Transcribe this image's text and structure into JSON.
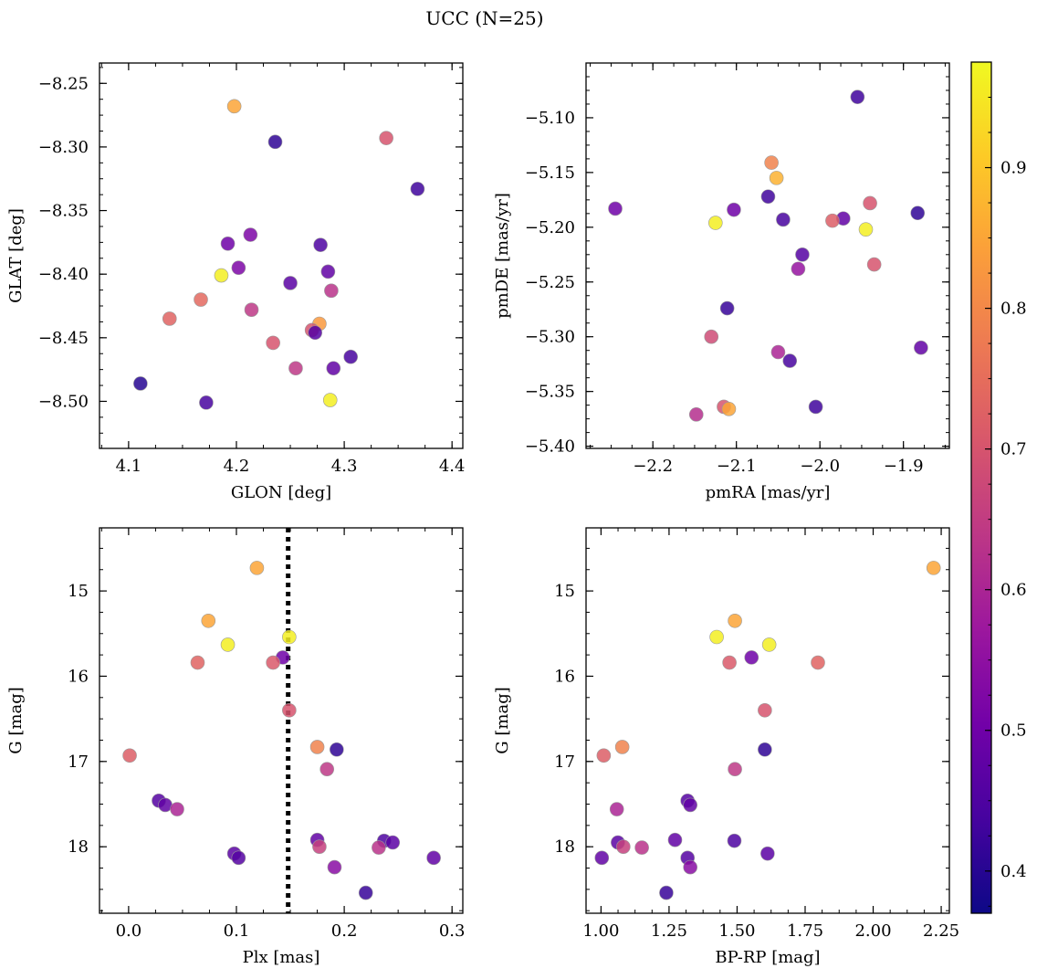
{
  "figure": {
    "title": "UCC (N=25)"
  },
  "colorbar": {
    "range": [
      0.37,
      0.975
    ],
    "ticks": [
      0.4,
      0.5,
      0.6,
      0.7,
      0.8,
      0.9
    ],
    "tick_labels": [
      "0.4",
      "0.5",
      "0.6",
      "0.7",
      "0.8",
      "0.9"
    ],
    "colormap": [
      "#0d0887",
      "#46039f",
      "#7201a8",
      "#9c179e",
      "#bd3786",
      "#d8576b",
      "#ed7953",
      "#fb9f3a",
      "#fdca26",
      "#f0f921"
    ]
  },
  "chart_data": [
    {
      "type": "scatter",
      "name": "glon-glat",
      "xlabel": "GLON [deg]",
      "ylabel": "GLAT [deg]",
      "xlim": [
        4.073,
        4.41
      ],
      "ylim": [
        -8.537,
        -8.234
      ],
      "xticks": [
        4.1,
        4.2,
        4.3,
        4.4
      ],
      "xtick_labels": [
        "4.1",
        "4.2",
        "4.3",
        "4.4"
      ],
      "yticks": [
        -8.25,
        -8.3,
        -8.35,
        -8.4,
        -8.45,
        -8.5
      ],
      "ytick_labels": [
        "−8.25",
        "−8.30",
        "−8.35",
        "−8.40",
        "−8.45",
        "−8.50"
      ],
      "points": [
        {
          "x": 4.198,
          "y": -8.268,
          "c": 0.85
        },
        {
          "x": 4.236,
          "y": -8.296,
          "c": 0.41
        },
        {
          "x": 4.339,
          "y": -8.293,
          "c": 0.7
        },
        {
          "x": 4.368,
          "y": -8.333,
          "c": 0.43
        },
        {
          "x": 4.213,
          "y": -8.369,
          "c": 0.52
        },
        {
          "x": 4.192,
          "y": -8.376,
          "c": 0.5
        },
        {
          "x": 4.278,
          "y": -8.377,
          "c": 0.45
        },
        {
          "x": 4.202,
          "y": -8.395,
          "c": 0.52
        },
        {
          "x": 4.186,
          "y": -8.401,
          "c": 0.96
        },
        {
          "x": 4.285,
          "y": -8.398,
          "c": 0.48
        },
        {
          "x": 4.25,
          "y": -8.407,
          "c": 0.47
        },
        {
          "x": 4.288,
          "y": -8.413,
          "c": 0.63
        },
        {
          "x": 4.167,
          "y": -8.42,
          "c": 0.74
        },
        {
          "x": 4.214,
          "y": -8.428,
          "c": 0.64
        },
        {
          "x": 4.138,
          "y": -8.435,
          "c": 0.73
        },
        {
          "x": 4.277,
          "y": -8.439,
          "c": 0.83
        },
        {
          "x": 4.27,
          "y": -8.444,
          "c": 0.7
        },
        {
          "x": 4.273,
          "y": -8.446,
          "c": 0.46
        },
        {
          "x": 4.234,
          "y": -8.454,
          "c": 0.7
        },
        {
          "x": 4.306,
          "y": -8.465,
          "c": 0.44
        },
        {
          "x": 4.255,
          "y": -8.474,
          "c": 0.64
        },
        {
          "x": 4.29,
          "y": -8.474,
          "c": 0.48
        },
        {
          "x": 4.111,
          "y": -8.486,
          "c": 0.4
        },
        {
          "x": 4.172,
          "y": -8.501,
          "c": 0.44
        },
        {
          "x": 4.287,
          "y": -8.499,
          "c": 0.96
        }
      ]
    },
    {
      "type": "scatter",
      "name": "pmra-pmde",
      "xlabel": "pmRA [mas/yr]",
      "ylabel": "pmDE [mas/yr]",
      "xlim": [
        -2.28,
        -1.845
      ],
      "ylim": [
        -5.402,
        -5.05
      ],
      "xticks": [
        -2.2,
        -2.1,
        -2.0,
        -1.9
      ],
      "xtick_labels": [
        "−2.2",
        "−2.1",
        "−2.0",
        "−1.9"
      ],
      "yticks": [
        -5.1,
        -5.15,
        -5.2,
        -5.25,
        -5.3,
        -5.35,
        -5.4
      ],
      "ytick_labels": [
        "−5.10",
        "−5.15",
        "−5.20",
        "−5.25",
        "−5.30",
        "−5.35",
        "−5.40"
      ],
      "points": [
        {
          "x": -1.955,
          "y": -5.081,
          "c": 0.43
        },
        {
          "x": -2.058,
          "y": -5.141,
          "c": 0.79
        },
        {
          "x": -2.052,
          "y": -5.155,
          "c": 0.87
        },
        {
          "x": -2.062,
          "y": -5.172,
          "c": 0.43
        },
        {
          "x": -1.94,
          "y": -5.178,
          "c": 0.7
        },
        {
          "x": -2.245,
          "y": -5.183,
          "c": 0.5
        },
        {
          "x": -2.103,
          "y": -5.184,
          "c": 0.5
        },
        {
          "x": -1.883,
          "y": -5.187,
          "c": 0.41
        },
        {
          "x": -2.044,
          "y": -5.193,
          "c": 0.44
        },
        {
          "x": -1.972,
          "y": -5.192,
          "c": 0.48
        },
        {
          "x": -1.985,
          "y": -5.194,
          "c": 0.72
        },
        {
          "x": -2.125,
          "y": -5.196,
          "c": 0.96
        },
        {
          "x": -1.945,
          "y": -5.202,
          "c": 0.96
        },
        {
          "x": -2.021,
          "y": -5.225,
          "c": 0.46
        },
        {
          "x": -1.935,
          "y": -5.234,
          "c": 0.7
        },
        {
          "x": -2.026,
          "y": -5.238,
          "c": 0.56
        },
        {
          "x": -2.111,
          "y": -5.274,
          "c": 0.42
        },
        {
          "x": -2.13,
          "y": -5.3,
          "c": 0.68
        },
        {
          "x": -2.05,
          "y": -5.314,
          "c": 0.6
        },
        {
          "x": -1.879,
          "y": -5.31,
          "c": 0.48
        },
        {
          "x": -2.036,
          "y": -5.322,
          "c": 0.44
        },
        {
          "x": -2.115,
          "y": -5.364,
          "c": 0.7
        },
        {
          "x": -2.109,
          "y": -5.366,
          "c": 0.85
        },
        {
          "x": -2.005,
          "y": -5.364,
          "c": 0.43
        },
        {
          "x": -2.148,
          "y": -5.371,
          "c": 0.62
        }
      ]
    },
    {
      "type": "scatter",
      "name": "plx-g",
      "xlabel": "Plx [mas]",
      "ylabel": "G [mag]",
      "xlim": [
        -0.027,
        0.31
      ],
      "ylim": [
        18.78,
        14.26
      ],
      "xticks": [
        0.0,
        0.1,
        0.2,
        0.3
      ],
      "xtick_labels": [
        "0.0",
        "0.1",
        "0.2",
        "0.3"
      ],
      "yticks": [
        15,
        16,
        17,
        18
      ],
      "ytick_labels": [
        "15",
        "16",
        "17",
        "18"
      ],
      "vline": {
        "x": 0.148,
        "style": "dotted",
        "color": "#000000"
      },
      "points": [
        {
          "x": 0.119,
          "y": 14.73,
          "c": 0.85
        },
        {
          "x": 0.074,
          "y": 15.35,
          "c": 0.85
        },
        {
          "x": 0.149,
          "y": 15.54,
          "c": 0.96
        },
        {
          "x": 0.092,
          "y": 15.63,
          "c": 0.96
        },
        {
          "x": 0.143,
          "y": 15.78,
          "c": 0.5
        },
        {
          "x": 0.064,
          "y": 15.84,
          "c": 0.73
        },
        {
          "x": 0.134,
          "y": 15.84,
          "c": 0.71
        },
        {
          "x": 0.149,
          "y": 16.4,
          "c": 0.7
        },
        {
          "x": 0.175,
          "y": 16.83,
          "c": 0.79
        },
        {
          "x": 0.193,
          "y": 16.86,
          "c": 0.41
        },
        {
          "x": 0.001,
          "y": 16.93,
          "c": 0.72
        },
        {
          "x": 0.184,
          "y": 17.09,
          "c": 0.64
        },
        {
          "x": 0.028,
          "y": 17.46,
          "c": 0.46
        },
        {
          "x": 0.034,
          "y": 17.51,
          "c": 0.48
        },
        {
          "x": 0.045,
          "y": 17.56,
          "c": 0.6
        },
        {
          "x": 0.175,
          "y": 17.92,
          "c": 0.48
        },
        {
          "x": 0.237,
          "y": 17.93,
          "c": 0.45
        },
        {
          "x": 0.245,
          "y": 17.95,
          "c": 0.47
        },
        {
          "x": 0.177,
          "y": 18.0,
          "c": 0.66
        },
        {
          "x": 0.232,
          "y": 18.01,
          "c": 0.63
        },
        {
          "x": 0.098,
          "y": 18.08,
          "c": 0.47
        },
        {
          "x": 0.102,
          "y": 18.13,
          "c": 0.46
        },
        {
          "x": 0.283,
          "y": 18.13,
          "c": 0.48
        },
        {
          "x": 0.191,
          "y": 18.24,
          "c": 0.54
        },
        {
          "x": 0.22,
          "y": 18.54,
          "c": 0.42
        }
      ]
    },
    {
      "type": "scatter",
      "name": "bprp-g",
      "xlabel": "BP-RP [mag]",
      "ylabel": "G [mag]",
      "xlim": [
        0.945,
        2.28
      ],
      "ylim": [
        18.78,
        14.26
      ],
      "xticks": [
        1.0,
        1.25,
        1.5,
        1.75,
        2.0,
        2.25
      ],
      "xtick_labels": [
        "1.00",
        "1.25",
        "1.50",
        "1.75",
        "2.00",
        "2.25"
      ],
      "yticks": [
        15,
        16,
        17,
        18
      ],
      "ytick_labels": [
        "15",
        "16",
        "17",
        "18"
      ],
      "points": [
        {
          "x": 2.222,
          "y": 14.73,
          "c": 0.85
        },
        {
          "x": 1.492,
          "y": 15.35,
          "c": 0.85
        },
        {
          "x": 1.425,
          "y": 15.54,
          "c": 0.96
        },
        {
          "x": 1.618,
          "y": 15.63,
          "c": 0.96
        },
        {
          "x": 1.553,
          "y": 15.78,
          "c": 0.5
        },
        {
          "x": 1.472,
          "y": 15.84,
          "c": 0.71
        },
        {
          "x": 1.797,
          "y": 15.84,
          "c": 0.73
        },
        {
          "x": 1.602,
          "y": 16.4,
          "c": 0.7
        },
        {
          "x": 1.078,
          "y": 16.83,
          "c": 0.79
        },
        {
          "x": 1.602,
          "y": 16.86,
          "c": 0.41
        },
        {
          "x": 1.01,
          "y": 16.93,
          "c": 0.72
        },
        {
          "x": 1.492,
          "y": 17.09,
          "c": 0.64
        },
        {
          "x": 1.318,
          "y": 17.46,
          "c": 0.46
        },
        {
          "x": 1.328,
          "y": 17.51,
          "c": 0.48
        },
        {
          "x": 1.058,
          "y": 17.56,
          "c": 0.6
        },
        {
          "x": 1.272,
          "y": 17.92,
          "c": 0.48
        },
        {
          "x": 1.49,
          "y": 17.93,
          "c": 0.45
        },
        {
          "x": 1.062,
          "y": 17.95,
          "c": 0.47
        },
        {
          "x": 1.082,
          "y": 18.0,
          "c": 0.66
        },
        {
          "x": 1.15,
          "y": 18.01,
          "c": 0.63
        },
        {
          "x": 1.612,
          "y": 18.08,
          "c": 0.47
        },
        {
          "x": 1.318,
          "y": 18.13,
          "c": 0.46
        },
        {
          "x": 1.003,
          "y": 18.13,
          "c": 0.48
        },
        {
          "x": 1.328,
          "y": 18.24,
          "c": 0.54
        },
        {
          "x": 1.24,
          "y": 18.54,
          "c": 0.42
        }
      ]
    }
  ]
}
